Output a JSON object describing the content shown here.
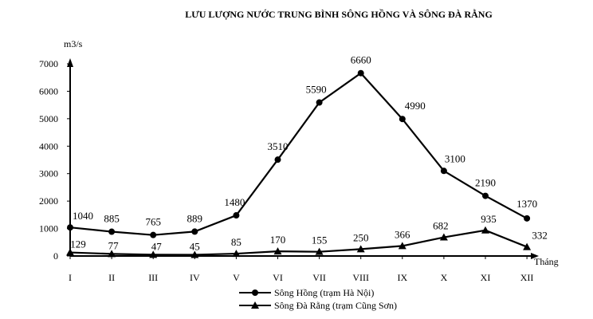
{
  "chart_data": {
    "type": "line",
    "title": "LƯU LƯỢNG NƯỚC TRUNG BÌNH SÔNG HỒNG VÀ  SÔNG ĐÀ RẰNG",
    "ylabel": "m3/s",
    "xlabel": "Tháng",
    "ylim": [
      0,
      7000
    ],
    "yticks": [
      0,
      1000,
      2000,
      3000,
      4000,
      5000,
      6000,
      7000
    ],
    "categories": [
      "I",
      "II",
      "III",
      "IV",
      "V",
      "VI",
      "VII",
      "VIII",
      "IX",
      "X",
      "XI",
      "XII"
    ],
    "grid": false,
    "legend_position": "bottom-center",
    "series": [
      {
        "name": "Sông Hồng (trạm Hà Nội)",
        "marker": "circle",
        "color": "#000000",
        "values": [
          1040,
          885,
          765,
          889,
          1480,
          3510,
          5590,
          6660,
          4990,
          3100,
          2190,
          1370
        ]
      },
      {
        "name": "Sông Đà Rằng (trạm Cũng Sơn)",
        "marker": "triangle",
        "color": "#000000",
        "values": [
          129,
          77,
          47,
          45,
          85,
          170,
          155,
          250,
          366,
          682,
          935,
          332
        ]
      }
    ]
  }
}
